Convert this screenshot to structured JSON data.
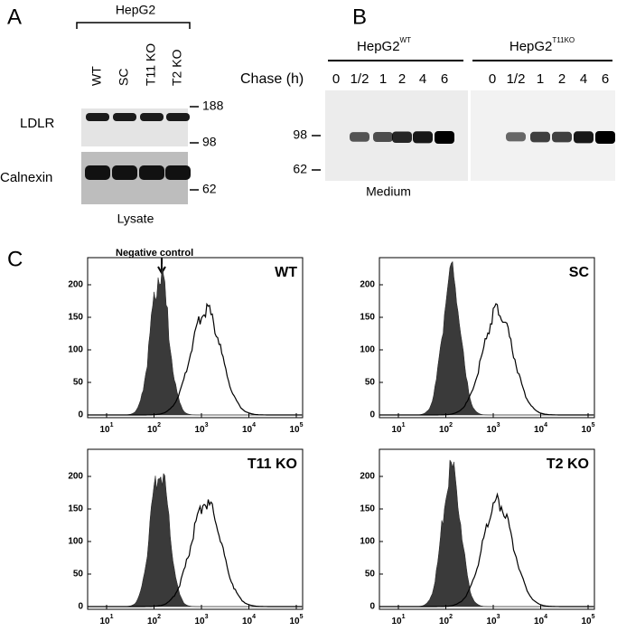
{
  "panel_a": {
    "label": "A",
    "cell_line": "HepG2",
    "lanes": [
      "WT",
      "SC",
      "T11 KO",
      "T2 KO"
    ],
    "rows": [
      "LDLR",
      "Calnexin"
    ],
    "markers": [
      "188",
      "98",
      "62"
    ],
    "caption": "Lysate"
  },
  "panel_b": {
    "label": "B",
    "groups": [
      {
        "name": "HepG2",
        "superscript": "WT"
      },
      {
        "name": "HepG2",
        "superscript": "T11KO"
      }
    ],
    "chase_label": "Chase (h)",
    "lanes": [
      "0",
      "1/2",
      "1",
      "2",
      "4",
      "6"
    ],
    "markers": [
      "98",
      "62"
    ],
    "caption": "Medium"
  },
  "panel_c": {
    "label": "C",
    "annotation": "Negative control",
    "yticks": [
      0,
      50,
      100,
      150,
      200
    ],
    "xticks": [
      {
        "base": "10",
        "exponent": "1"
      },
      {
        "base": "10",
        "exponent": "2"
      },
      {
        "base": "10",
        "exponent": "3"
      },
      {
        "base": "10",
        "exponent": "4"
      },
      {
        "base": "10",
        "exponent": "5"
      }
    ],
    "plots": [
      "WT",
      "SC",
      "T11 KO",
      "T2 KO"
    ]
  }
}
